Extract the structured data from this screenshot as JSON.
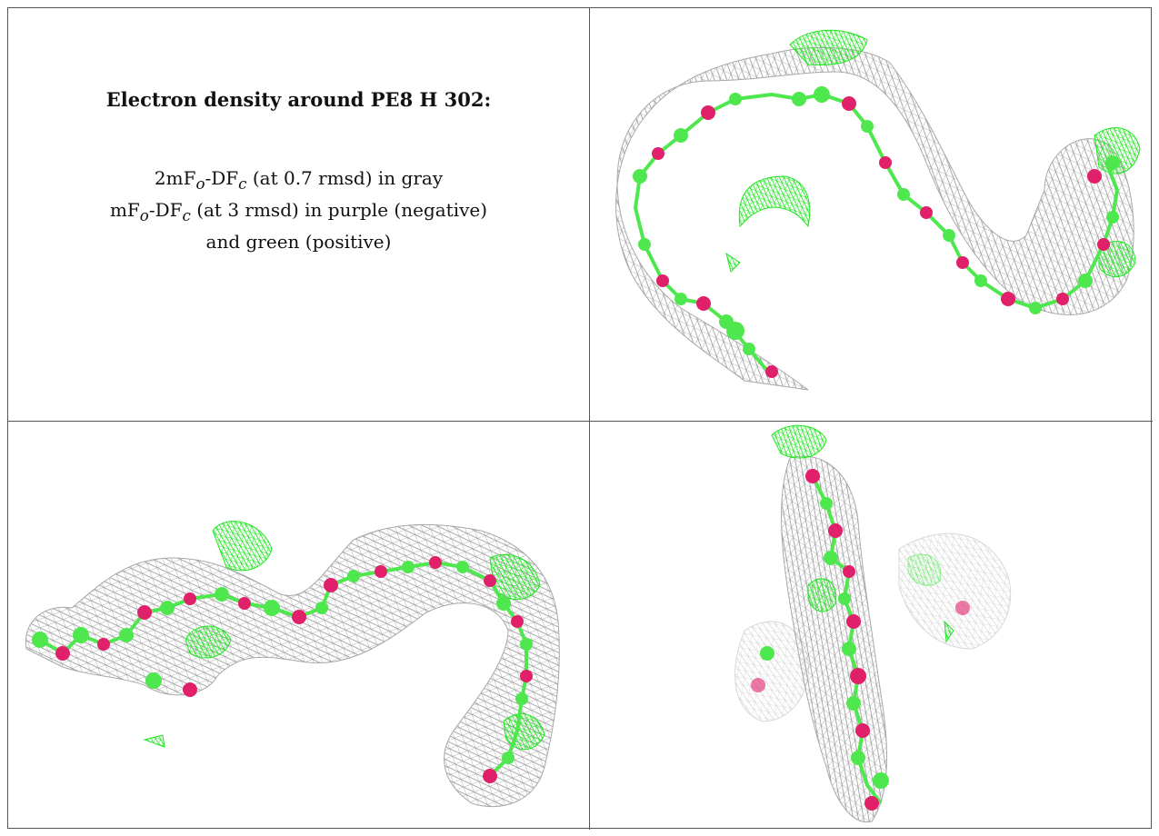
{
  "caption": {
    "title": "Electron density around PE8 H 302:",
    "line1": {
      "pre": "2mF",
      "sub1": "o",
      "mid": "-DF",
      "sub2": "c",
      "post": " (at 0.7 rmsd) in gray"
    },
    "line2": {
      "pre": "mF",
      "sub1": "o",
      "mid": "-DF",
      "sub2": "c",
      "post": " (at 3 rmsd) in purple (negative)"
    },
    "line3": "and green (positive)"
  },
  "colors": {
    "mesh_gray": "#9a9a9a",
    "mesh_green": "#22e622",
    "carbon": "#4ee84e",
    "oxygen": "#e0206a",
    "border": "#555555"
  },
  "icons": [
    "density-mesh-icon",
    "ball-and-stick-icon"
  ]
}
